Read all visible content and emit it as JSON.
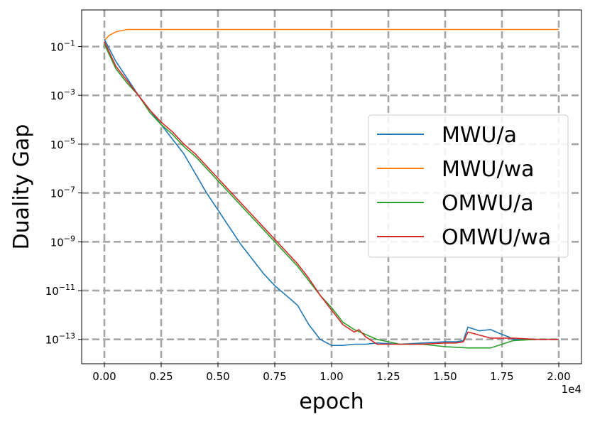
{
  "chart_data": {
    "type": "line",
    "xlabel": "epoch",
    "ylabel": "Duality Gap",
    "x_scale_note": "1e4",
    "xlim": [
      -0.1,
      2.1
    ],
    "ylim_log10": [
      -14,
      0.5
    ],
    "yscale": "log",
    "grid": true,
    "legend_position": "center-right",
    "x_ticks": [
      {
        "value": 0.0,
        "label": "0.00"
      },
      {
        "value": 0.25,
        "label": "0.25"
      },
      {
        "value": 0.5,
        "label": "0.50"
      },
      {
        "value": 0.75,
        "label": "0.75"
      },
      {
        "value": 1.0,
        "label": "1.00"
      },
      {
        "value": 1.25,
        "label": "1.25"
      },
      {
        "value": 1.5,
        "label": "1.50"
      },
      {
        "value": 1.75,
        "label": "1.75"
      },
      {
        "value": 2.0,
        "label": "2.00"
      }
    ],
    "y_ticks": [
      {
        "exp": -1,
        "base": "10",
        "sup": "−1"
      },
      {
        "exp": -3,
        "base": "10",
        "sup": "−3"
      },
      {
        "exp": -5,
        "base": "10",
        "sup": "−5"
      },
      {
        "exp": -7,
        "base": "10",
        "sup": "−7"
      },
      {
        "exp": -9,
        "base": "10",
        "sup": "−9"
      },
      {
        "exp": -11,
        "base": "10",
        "sup": "−11"
      },
      {
        "exp": -13,
        "base": "10",
        "sup": "−13"
      }
    ],
    "series": [
      {
        "name": "MWU/a",
        "color": "#1f77b4",
        "x": [
          0.0,
          0.05,
          0.1,
          0.15,
          0.2,
          0.25,
          0.3,
          0.35,
          0.4,
          0.45,
          0.5,
          0.55,
          0.6,
          0.65,
          0.7,
          0.75,
          0.8,
          0.85,
          0.9,
          0.95,
          1.0,
          1.05,
          1.1,
          1.15,
          1.2,
          1.3,
          1.4,
          1.5,
          1.55,
          1.58,
          1.6,
          1.65,
          1.7,
          1.75,
          1.78,
          1.8,
          1.9,
          2.0
        ],
        "log10_y": [
          -0.7,
          -1.6,
          -2.3,
          -3.0,
          -3.6,
          -4.2,
          -4.8,
          -5.4,
          -6.2,
          -7.0,
          -7.7,
          -8.4,
          -9.1,
          -9.7,
          -10.3,
          -10.8,
          -11.2,
          -11.6,
          -12.4,
          -13.0,
          -13.25,
          -13.25,
          -13.2,
          -13.2,
          -13.15,
          -13.2,
          -13.15,
          -13.1,
          -13.1,
          -13.05,
          -12.5,
          -12.65,
          -12.6,
          -12.8,
          -12.9,
          -13.0,
          -13.0,
          -13.0
        ]
      },
      {
        "name": "MWU/wa",
        "color": "#ff7f0e",
        "x": [
          0.0,
          0.02,
          0.05,
          0.1,
          0.2,
          0.3,
          0.4,
          0.5,
          0.6,
          0.7,
          0.8,
          0.9,
          1.0,
          1.1,
          1.2,
          1.3,
          1.4,
          1.5,
          1.6,
          1.7,
          1.8,
          1.9,
          2.0
        ],
        "log10_y": [
          -0.75,
          -0.55,
          -0.4,
          -0.3,
          -0.3,
          -0.3,
          -0.3,
          -0.3,
          -0.3,
          -0.3,
          -0.3,
          -0.3,
          -0.3,
          -0.3,
          -0.3,
          -0.3,
          -0.3,
          -0.3,
          -0.3,
          -0.3,
          -0.3,
          -0.3,
          -0.3
        ]
      },
      {
        "name": "OMWU/a",
        "color": "#2ca02c",
        "x": [
          0.0,
          0.05,
          0.1,
          0.15,
          0.2,
          0.25,
          0.3,
          0.35,
          0.4,
          0.45,
          0.5,
          0.55,
          0.6,
          0.65,
          0.7,
          0.75,
          0.8,
          0.85,
          0.9,
          0.95,
          1.0,
          1.05,
          1.1,
          1.2,
          1.3,
          1.4,
          1.5,
          1.6,
          1.7,
          1.8,
          1.9,
          2.0
        ],
        "log10_y": [
          -0.9,
          -1.9,
          -2.5,
          -3.0,
          -3.7,
          -4.2,
          -4.6,
          -5.1,
          -5.5,
          -6.0,
          -6.5,
          -7.0,
          -7.5,
          -8.0,
          -8.5,
          -9.0,
          -9.5,
          -10.0,
          -10.6,
          -11.2,
          -11.7,
          -12.3,
          -12.6,
          -13.0,
          -13.2,
          -13.2,
          -13.3,
          -13.35,
          -13.35,
          -13.05,
          -13.0,
          -13.0
        ]
      },
      {
        "name": "OMWU/wa",
        "color": "#d62728",
        "x": [
          0.0,
          0.05,
          0.1,
          0.15,
          0.2,
          0.25,
          0.3,
          0.35,
          0.4,
          0.45,
          0.5,
          0.55,
          0.6,
          0.65,
          0.7,
          0.75,
          0.8,
          0.85,
          0.9,
          0.95,
          1.0,
          1.05,
          1.1,
          1.12,
          1.15,
          1.2,
          1.3,
          1.4,
          1.5,
          1.55,
          1.58,
          1.6,
          1.7,
          1.8,
          1.9,
          2.0
        ],
        "log10_y": [
          -0.8,
          -1.8,
          -2.4,
          -3.0,
          -3.6,
          -4.1,
          -4.5,
          -5.0,
          -5.4,
          -5.9,
          -6.4,
          -6.9,
          -7.4,
          -7.9,
          -8.4,
          -8.9,
          -9.4,
          -9.9,
          -10.5,
          -11.2,
          -11.8,
          -12.4,
          -12.7,
          -12.6,
          -12.9,
          -13.2,
          -13.2,
          -13.2,
          -13.15,
          -13.15,
          -13.1,
          -12.7,
          -12.95,
          -12.95,
          -13.0,
          -13.0
        ]
      }
    ]
  }
}
